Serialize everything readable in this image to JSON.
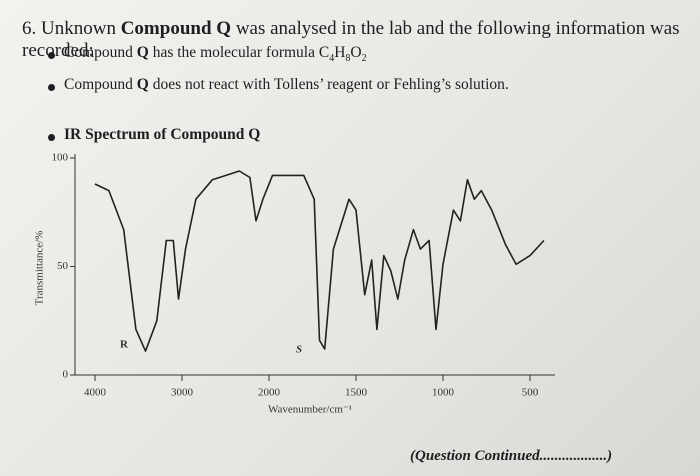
{
  "question": {
    "number": "6.",
    "parts": [
      "Unknown ",
      "Compound Q",
      " was analysed in the lab and the following information was recorded:"
    ]
  },
  "bullets": [
    {
      "parts": [
        "Compound ",
        "Q",
        " has the molecular formula C",
        "4",
        "H",
        "8",
        "O",
        "2"
      ]
    },
    {
      "parts": [
        "Compound ",
        "Q",
        " does not react with Tollens’ reagent or Fehling’s solution."
      ]
    }
  ],
  "chart_data": {
    "type": "line",
    "title": "IR Spectrum of Compound Q",
    "x_label": "Wavenumber/cm⁻¹",
    "y_label": "Transmittance/%",
    "x": [
      4000,
      3840,
      3670,
      3530,
      3420,
      3290,
      3180,
      3100,
      3040,
      2960,
      2840,
      2650,
      2340,
      2220,
      2150,
      2070,
      1980,
      1800,
      1740,
      1710,
      1680,
      1630,
      1540,
      1500,
      1450,
      1410,
      1380,
      1340,
      1300,
      1260,
      1220,
      1170,
      1130,
      1080,
      1040,
      1000,
      940,
      900,
      860,
      820,
      780,
      720,
      640,
      580,
      500,
      420
    ],
    "values": [
      88,
      85,
      67,
      21,
      11,
      25,
      62,
      62,
      35,
      58,
      81,
      90,
      94,
      91,
      71,
      81,
      92,
      92,
      81,
      16,
      12,
      58,
      81,
      76,
      37,
      53,
      21,
      55,
      48,
      35,
      53,
      67,
      58,
      62,
      21,
      51,
      76,
      71,
      90,
      81,
      85,
      76,
      60,
      51,
      55,
      62
    ],
    "color": "#222",
    "xlim": [
      4000,
      400
    ],
    "xticks": [
      4000,
      3000,
      2000,
      1500,
      1000,
      500
    ],
    "ylim": [
      0,
      100
    ],
    "yticks": [
      0,
      50,
      100
    ],
    "annotations": [
      "R",
      "S"
    ]
  },
  "footer": "(Question Continued..................)"
}
